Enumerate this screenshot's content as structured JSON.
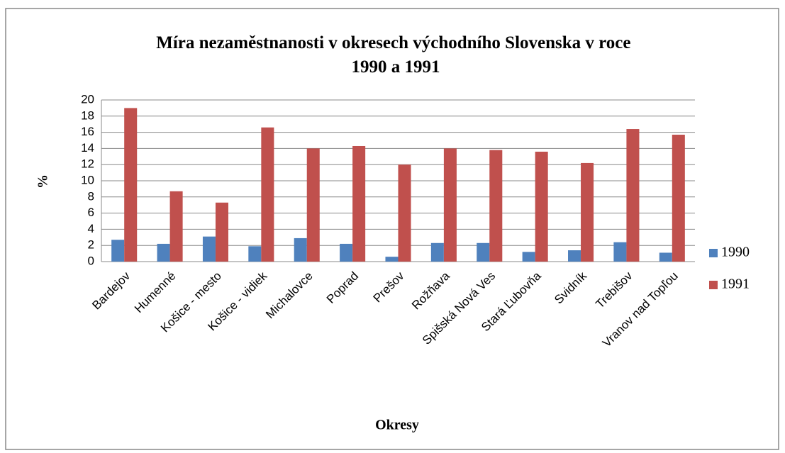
{
  "chart_data": {
    "type": "bar",
    "title": "Míra nezaměstnanosti v okresech východního Slovenska v roce 1990 a 1991",
    "xlabel": "Okresy",
    "ylabel": "%",
    "categories": [
      "Bardejov",
      "Humenné",
      "Košice - mesto",
      "Košice - vidiek",
      "Michalovce",
      "Poprad",
      "Prešov",
      "Rožňava",
      "Spišská Nová Ves",
      "Stará Ľubovňa",
      "Svidník",
      "Trebišov",
      "Vranov nad Topľou"
    ],
    "series": [
      {
        "name": "1990",
        "color": "#4f81bd",
        "values": [
          2.7,
          2.2,
          3.1,
          1.9,
          2.9,
          2.2,
          0.6,
          2.3,
          2.3,
          1.2,
          1.4,
          2.4,
          1.1
        ]
      },
      {
        "name": "1991",
        "color": "#c0504d",
        "values": [
          19.0,
          8.7,
          7.3,
          16.6,
          14.0,
          14.3,
          12.0,
          14.0,
          13.8,
          13.6,
          12.2,
          16.4,
          15.7
        ]
      }
    ],
    "ylim": [
      0,
      20
    ],
    "yticks": [
      0,
      2,
      4,
      6,
      8,
      10,
      12,
      14,
      16,
      18,
      20
    ],
    "grid": true,
    "legend": "right"
  }
}
